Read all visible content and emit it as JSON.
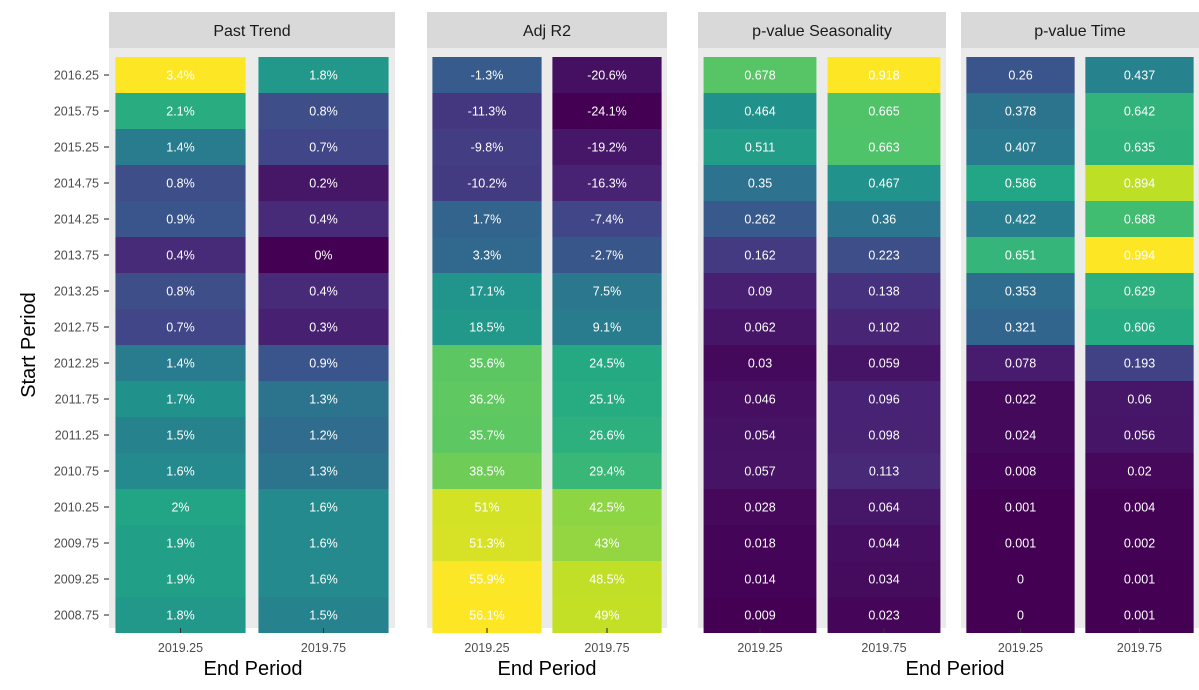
{
  "chart_data": {
    "type": "heatmap",
    "ylabel": "Start Period",
    "xlabel": "End Period",
    "y_categories": [
      "2016.25",
      "2015.75",
      "2015.25",
      "2014.75",
      "2014.25",
      "2013.75",
      "2013.25",
      "2012.75",
      "2012.25",
      "2011.75",
      "2011.25",
      "2010.75",
      "2010.25",
      "2009.75",
      "2009.25",
      "2008.75"
    ],
    "x_categories": [
      "2019.25",
      "2019.75"
    ],
    "colorscale": "viridis",
    "facets": [
      {
        "title": "Past Trend",
        "values": [
          [
            3.4,
            1.8
          ],
          [
            2.1,
            0.8
          ],
          [
            1.4,
            0.7
          ],
          [
            0.8,
            0.2
          ],
          [
            0.9,
            0.4
          ],
          [
            0.4,
            0
          ],
          [
            0.8,
            0.4
          ],
          [
            0.7,
            0.3
          ],
          [
            1.4,
            0.9
          ],
          [
            1.7,
            1.3
          ],
          [
            1.5,
            1.2
          ],
          [
            1.6,
            1.3
          ],
          [
            2,
            1.6
          ],
          [
            1.9,
            1.6
          ],
          [
            1.9,
            1.6
          ],
          [
            1.8,
            1.5
          ]
        ],
        "labels": [
          [
            "3.4%",
            "1.8%"
          ],
          [
            "2.1%",
            "0.8%"
          ],
          [
            "1.4%",
            "0.7%"
          ],
          [
            "0.8%",
            "0.2%"
          ],
          [
            "0.9%",
            "0.4%"
          ],
          [
            "0.4%",
            "0%"
          ],
          [
            "0.8%",
            "0.4%"
          ],
          [
            "0.7%",
            "0.3%"
          ],
          [
            "1.4%",
            "0.9%"
          ],
          [
            "1.7%",
            "1.3%"
          ],
          [
            "1.5%",
            "1.2%"
          ],
          [
            "1.6%",
            "1.3%"
          ],
          [
            "2%",
            "1.6%"
          ],
          [
            "1.9%",
            "1.6%"
          ],
          [
            "1.9%",
            "1.6%"
          ],
          [
            "1.8%",
            "1.5%"
          ]
        ]
      },
      {
        "title": "Adj R2",
        "values": [
          [
            -1.3,
            -20.6
          ],
          [
            -11.3,
            -24.1
          ],
          [
            -9.8,
            -19.2
          ],
          [
            -10.2,
            -16.3
          ],
          [
            1.7,
            -7.4
          ],
          [
            3.3,
            -2.7
          ],
          [
            17.1,
            7.5
          ],
          [
            18.5,
            9.1
          ],
          [
            35.6,
            24.5
          ],
          [
            36.2,
            25.1
          ],
          [
            35.7,
            26.6
          ],
          [
            38.5,
            29.4
          ],
          [
            51,
            42.5
          ],
          [
            51.3,
            43
          ],
          [
            55.9,
            48.5
          ],
          [
            56.1,
            49
          ]
        ],
        "labels": [
          [
            "-1.3%",
            "-20.6%"
          ],
          [
            "-11.3%",
            "-24.1%"
          ],
          [
            "-9.8%",
            "-19.2%"
          ],
          [
            "-10.2%",
            "-16.3%"
          ],
          [
            "1.7%",
            "-7.4%"
          ],
          [
            "3.3%",
            "-2.7%"
          ],
          [
            "17.1%",
            "7.5%"
          ],
          [
            "18.5%",
            "9.1%"
          ],
          [
            "35.6%",
            "24.5%"
          ],
          [
            "36.2%",
            "25.1%"
          ],
          [
            "35.7%",
            "26.6%"
          ],
          [
            "38.5%",
            "29.4%"
          ],
          [
            "51%",
            "42.5%"
          ],
          [
            "51.3%",
            "43%"
          ],
          [
            "55.9%",
            "48.5%"
          ],
          [
            "56.1%",
            "49%"
          ]
        ]
      },
      {
        "title": "p-value Seasonality",
        "values": [
          [
            0.678,
            0.918
          ],
          [
            0.464,
            0.665
          ],
          [
            0.511,
            0.663
          ],
          [
            0.35,
            0.467
          ],
          [
            0.262,
            0.36
          ],
          [
            0.162,
            0.223
          ],
          [
            0.09,
            0.138
          ],
          [
            0.062,
            0.102
          ],
          [
            0.03,
            0.059
          ],
          [
            0.046,
            0.096
          ],
          [
            0.054,
            0.098
          ],
          [
            0.057,
            0.113
          ],
          [
            0.028,
            0.064
          ],
          [
            0.018,
            0.044
          ],
          [
            0.014,
            0.034
          ],
          [
            0.009,
            0.023
          ]
        ],
        "labels": [
          [
            "0.678",
            "0.918"
          ],
          [
            "0.464",
            "0.665"
          ],
          [
            "0.511",
            "0.663"
          ],
          [
            "0.35",
            "0.467"
          ],
          [
            "0.262",
            "0.36"
          ],
          [
            "0.162",
            "0.223"
          ],
          [
            "0.09",
            "0.138"
          ],
          [
            "0.062",
            "0.102"
          ],
          [
            "0.03",
            "0.059"
          ],
          [
            "0.046",
            "0.096"
          ],
          [
            "0.054",
            "0.098"
          ],
          [
            "0.057",
            "0.113"
          ],
          [
            "0.028",
            "0.064"
          ],
          [
            "0.018",
            "0.044"
          ],
          [
            "0.014",
            "0.034"
          ],
          [
            "0.009",
            "0.023"
          ]
        ]
      },
      {
        "title": "p-value Time",
        "values": [
          [
            0.26,
            0.437
          ],
          [
            0.378,
            0.642
          ],
          [
            0.407,
            0.635
          ],
          [
            0.586,
            0.894
          ],
          [
            0.422,
            0.688
          ],
          [
            0.651,
            0.994
          ],
          [
            0.353,
            0.629
          ],
          [
            0.321,
            0.606
          ],
          [
            0.078,
            0.193
          ],
          [
            0.022,
            0.06
          ],
          [
            0.024,
            0.056
          ],
          [
            0.008,
            0.02
          ],
          [
            0.001,
            0.004
          ],
          [
            0.001,
            0.002
          ],
          [
            0,
            0.001
          ],
          [
            0,
            0.001
          ]
        ],
        "labels": [
          [
            "0.26",
            "0.437"
          ],
          [
            "0.378",
            "0.642"
          ],
          [
            "0.407",
            "0.635"
          ],
          [
            "0.586",
            "0.894"
          ],
          [
            "0.422",
            "0.688"
          ],
          [
            "0.651",
            "0.994"
          ],
          [
            "0.353",
            "0.629"
          ],
          [
            "0.321",
            "0.606"
          ],
          [
            "0.078",
            "0.193"
          ],
          [
            "0.022",
            "0.06"
          ],
          [
            "0.024",
            "0.056"
          ],
          [
            "0.008",
            "0.02"
          ],
          [
            "0.001",
            "0.004"
          ],
          [
            "0.001",
            "0.002"
          ],
          [
            "0",
            "0.001"
          ],
          [
            "0",
            "0.001"
          ]
        ]
      }
    ]
  }
}
